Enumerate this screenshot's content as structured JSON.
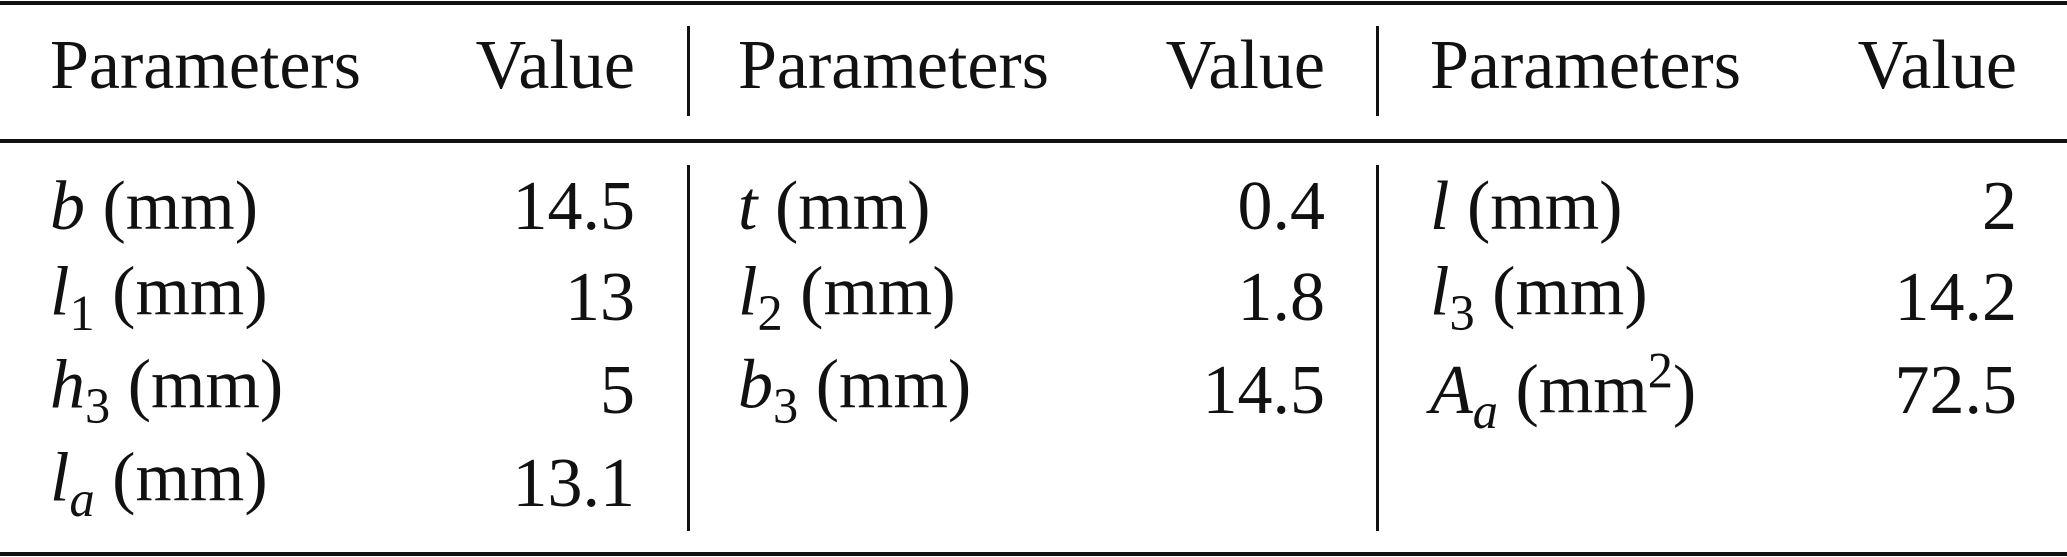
{
  "table": {
    "groups": [
      {
        "header": [
          "Parameters",
          "Value"
        ],
        "rows": [
          {
            "parameter": [
              {
                "text": "b",
                "style": "italic"
              },
              {
                "text": "(mm)",
                "style": "unit"
              }
            ],
            "value": 14.5
          },
          {
            "parameter": [
              {
                "text": "l",
                "style": "italic"
              },
              {
                "text": "1",
                "style": "sub"
              },
              {
                "text": "(mm)",
                "style": "unit"
              }
            ],
            "value": 13
          },
          {
            "parameter": [
              {
                "text": "h",
                "style": "italic"
              },
              {
                "text": "3",
                "style": "sub"
              },
              {
                "text": "(mm)",
                "style": "unit"
              }
            ],
            "value": 5
          },
          {
            "parameter": [
              {
                "text": "l",
                "style": "italic"
              },
              {
                "text": "a",
                "style": "sub-italic"
              },
              {
                "text": "(mm)",
                "style": "unit"
              }
            ],
            "value": 13.1
          }
        ]
      },
      {
        "header": [
          "Parameters",
          "Value"
        ],
        "rows": [
          {
            "parameter": [
              {
                "text": "t",
                "style": "italic"
              },
              {
                "text": "(mm)",
                "style": "unit"
              }
            ],
            "value": 0.4
          },
          {
            "parameter": [
              {
                "text": "l",
                "style": "italic"
              },
              {
                "text": "2",
                "style": "sub"
              },
              {
                "text": "(mm)",
                "style": "unit"
              }
            ],
            "value": 1.8
          },
          {
            "parameter": [
              {
                "text": "b",
                "style": "italic"
              },
              {
                "text": "3",
                "style": "sub"
              },
              {
                "text": "(mm)",
                "style": "unit"
              }
            ],
            "value": 14.5
          }
        ]
      },
      {
        "header": [
          "Parameters",
          "Value"
        ],
        "rows": [
          {
            "parameter": [
              {
                "text": "l",
                "style": "italic"
              },
              {
                "text": "(mm)",
                "style": "unit"
              }
            ],
            "value": 2
          },
          {
            "parameter": [
              {
                "text": "l",
                "style": "italic"
              },
              {
                "text": "3",
                "style": "sub"
              },
              {
                "text": "(mm)",
                "style": "unit"
              }
            ],
            "value": 14.2
          },
          {
            "parameter": [
              {
                "text": "A",
                "style": "italic"
              },
              {
                "text": "a",
                "style": "sub-italic"
              },
              {
                "text": "(mm",
                "style": "unit"
              },
              {
                "text": "2",
                "style": "sup"
              },
              {
                "text": ")",
                "style": "roman"
              }
            ],
            "value": 72.5
          }
        ]
      }
    ]
  }
}
